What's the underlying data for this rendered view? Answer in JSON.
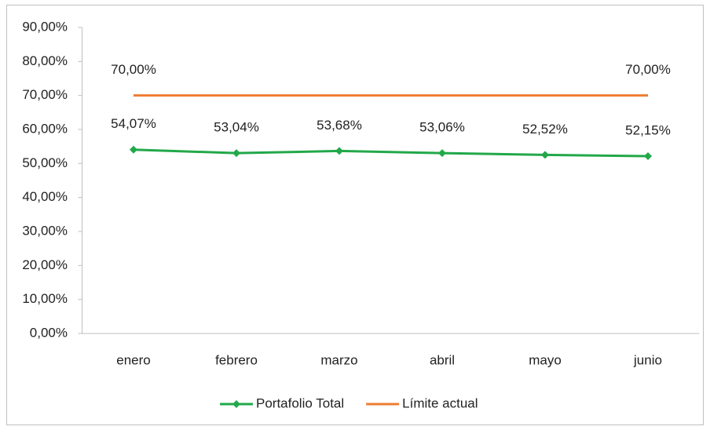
{
  "chart_data": {
    "type": "line",
    "categories": [
      "enero",
      "febrero",
      "marzo",
      "abril",
      "mayo",
      "junio"
    ],
    "series": [
      {
        "name": "Portafolio Total",
        "color": "#22a84a",
        "marker": "diamond",
        "values": [
          54.07,
          53.04,
          53.68,
          53.06,
          52.52,
          52.15
        ],
        "value_labels": [
          "54,07%",
          "53,04%",
          "53,68%",
          "53,06%",
          "52,52%",
          "52,15%"
        ]
      },
      {
        "name": "Límite actual",
        "color": "#ed7d31",
        "values": [
          70,
          70,
          70,
          70,
          70,
          70
        ],
        "value_labels": [
          "70,00%",
          null,
          null,
          null,
          null,
          "70,00%"
        ]
      }
    ],
    "ylim": [
      0,
      90
    ],
    "yticks": [
      {
        "value": 0,
        "label": "0,00%"
      },
      {
        "value": 10,
        "label": "10,00%"
      },
      {
        "value": 20,
        "label": "20,00%"
      },
      {
        "value": 30,
        "label": "30,00%"
      },
      {
        "value": 40,
        "label": "40,00%"
      },
      {
        "value": 50,
        "label": "50,00%"
      },
      {
        "value": 60,
        "label": "60,00%"
      },
      {
        "value": 70,
        "label": "70,00%"
      },
      {
        "value": 80,
        "label": "80,00%"
      },
      {
        "value": 90,
        "label": "90,00%"
      }
    ],
    "grid": false,
    "legend": "bottom"
  }
}
